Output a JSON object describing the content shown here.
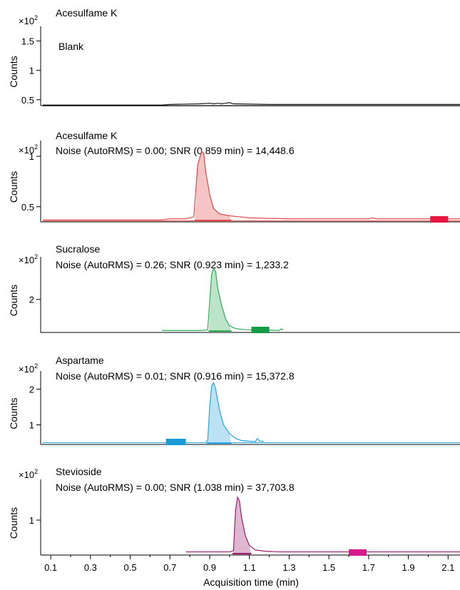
{
  "chart_data": {
    "type": "line",
    "x_axis": {
      "label": "Acquisition time (min)",
      "range": [
        0.06,
        2.16
      ],
      "ticks": [
        "0.1",
        "0.3",
        "0.5",
        "0.7",
        "0.9",
        "1.1",
        "1.3",
        "1.5",
        "1.7",
        "1.9",
        "2.1"
      ]
    },
    "y_axis_label": "Counts",
    "scale_label": "×10",
    "scale_exponent": "2",
    "panels": [
      {
        "title": "Acesulfame K",
        "subtitle": "Blank",
        "color": "#1a1a1a",
        "ylim": [
          0.4,
          1.65
        ],
        "yticks": [
          "1.5",
          "1",
          "0.5"
        ],
        "ytick_values": [
          1.5,
          1.0,
          0.5
        ],
        "shaded": false,
        "series": [
          [
            0.06,
            0.41
          ],
          [
            0.66,
            0.41
          ],
          [
            0.7,
            0.42
          ],
          [
            0.85,
            0.43
          ],
          [
            0.9,
            0.44
          ],
          [
            0.92,
            0.43
          ],
          [
            0.94,
            0.44
          ],
          [
            0.96,
            0.43
          ],
          [
            0.98,
            0.44
          ],
          [
            1.0,
            0.45
          ],
          [
            1.02,
            0.43
          ],
          [
            1.2,
            0.42
          ],
          [
            1.5,
            0.42
          ],
          [
            2.16,
            0.42
          ]
        ],
        "baseline": [
          [
            0.06,
            0.395
          ],
          [
            2.16,
            0.395
          ]
        ],
        "marker": null
      },
      {
        "title": "Acesulfame K",
        "subtitle": "Noise (AutoRMS) = 0.00; SNR (0.859 min) = 14,448.6",
        "color": "#e04848",
        "ylim": [
          0.35,
          1.1
        ],
        "yticks": [
          "1",
          "0.5"
        ],
        "ytick_values": [
          1.0,
          0.5
        ],
        "shaded": true,
        "series": [
          [
            0.06,
            0.37
          ],
          [
            0.66,
            0.37
          ],
          [
            0.7,
            0.38
          ],
          [
            0.78,
            0.38
          ],
          [
            0.8,
            0.39
          ],
          [
            0.82,
            0.4
          ],
          [
            0.84,
            0.92
          ],
          [
            0.86,
            1.05
          ],
          [
            0.87,
            1.03
          ],
          [
            0.88,
            0.85
          ],
          [
            0.9,
            0.62
          ],
          [
            0.92,
            0.48
          ],
          [
            0.95,
            0.43
          ],
          [
            1.0,
            0.41
          ],
          [
            1.05,
            0.4
          ],
          [
            1.1,
            0.39
          ],
          [
            1.3,
            0.38
          ],
          [
            1.7,
            0.38
          ],
          [
            1.72,
            0.39
          ],
          [
            1.74,
            0.38
          ],
          [
            2.16,
            0.38
          ]
        ],
        "baseline": [
          [
            0.06,
            0.36
          ],
          [
            2.16,
            0.36
          ]
        ],
        "marker": {
          "x": [
            2.01,
            2.1
          ],
          "color": "#e8173f"
        }
      },
      {
        "title": "Sucralose",
        "subtitle": "Noise (AutoRMS) = 0.26; SNR (0.923 min) = 1,233.2",
        "color": "#2daa54",
        "ylim": [
          1.15,
          2.95
        ],
        "yticks": [
          "2"
        ],
        "ytick_values": [
          2.0
        ],
        "shaded": true,
        "series": [
          [
            0.66,
            1.2
          ],
          [
            0.8,
            1.2
          ],
          [
            0.85,
            1.2
          ],
          [
            0.88,
            1.21
          ],
          [
            0.89,
            1.22
          ],
          [
            0.91,
            2.65
          ],
          [
            0.92,
            2.8
          ],
          [
            0.93,
            2.72
          ],
          [
            0.94,
            2.3
          ],
          [
            0.96,
            1.85
          ],
          [
            0.98,
            1.5
          ],
          [
            1.0,
            1.32
          ],
          [
            1.03,
            1.25
          ],
          [
            1.08,
            1.22
          ],
          [
            1.2,
            1.21
          ],
          [
            1.25,
            1.2
          ],
          [
            1.26,
            1.24
          ],
          [
            1.27,
            1.22
          ]
        ],
        "baseline": null,
        "marker": {
          "x": [
            1.11,
            1.2
          ],
          "color": "#159a45"
        }
      },
      {
        "title": "Aspartame",
        "subtitle": "Noise (AutoRMS) = 0.01; SNR (0.916 min) = 15,372.8",
        "color": "#27a5dc",
        "ylim": [
          0.45,
          2.35
        ],
        "yticks": [
          "2",
          "1"
        ],
        "ytick_values": [
          2.0,
          1.0
        ],
        "shaded": true,
        "series": [
          [
            0.88,
            0.53
          ],
          [
            0.89,
            0.55
          ],
          [
            0.9,
            1.5
          ],
          [
            0.91,
            2.1
          ],
          [
            0.92,
            2.18
          ],
          [
            0.93,
            2.0
          ],
          [
            0.95,
            1.4
          ],
          [
            0.97,
            1.0
          ],
          [
            1.0,
            0.75
          ],
          [
            1.03,
            0.62
          ],
          [
            1.06,
            0.56
          ],
          [
            1.1,
            0.54
          ],
          [
            1.13,
            0.53
          ],
          [
            1.14,
            0.62
          ],
          [
            1.15,
            0.55
          ],
          [
            1.17,
            0.53
          ]
        ],
        "baseline": [
          [
            0.06,
            0.5
          ],
          [
            2.16,
            0.5
          ]
        ],
        "marker": {
          "x": [
            0.68,
            0.78
          ],
          "color": "#1a9bd6"
        }
      },
      {
        "title": "Stevioside",
        "subtitle": "Noise (AutoRMS) = 0.00; SNR (1.038 min) = 37,703.8",
        "color": "#9b1f6e",
        "ylim": [
          0.45,
          1.55
        ],
        "yticks": [
          "1"
        ],
        "ytick_values": [
          1.0
        ],
        "shaded": true,
        "series": [
          [
            0.78,
            0.5
          ],
          [
            0.9,
            0.5
          ],
          [
            1.0,
            0.5
          ],
          [
            1.02,
            0.52
          ],
          [
            1.03,
            1.15
          ],
          [
            1.04,
            1.36
          ],
          [
            1.05,
            1.3
          ],
          [
            1.06,
            1.05
          ],
          [
            1.08,
            0.75
          ],
          [
            1.1,
            0.6
          ],
          [
            1.13,
            0.53
          ],
          [
            1.18,
            0.51
          ],
          [
            1.25,
            0.5
          ],
          [
            2.16,
            0.5
          ]
        ],
        "baseline": null,
        "marker": {
          "x": [
            1.6,
            1.69
          ],
          "color": "#d81b8c"
        }
      }
    ]
  }
}
